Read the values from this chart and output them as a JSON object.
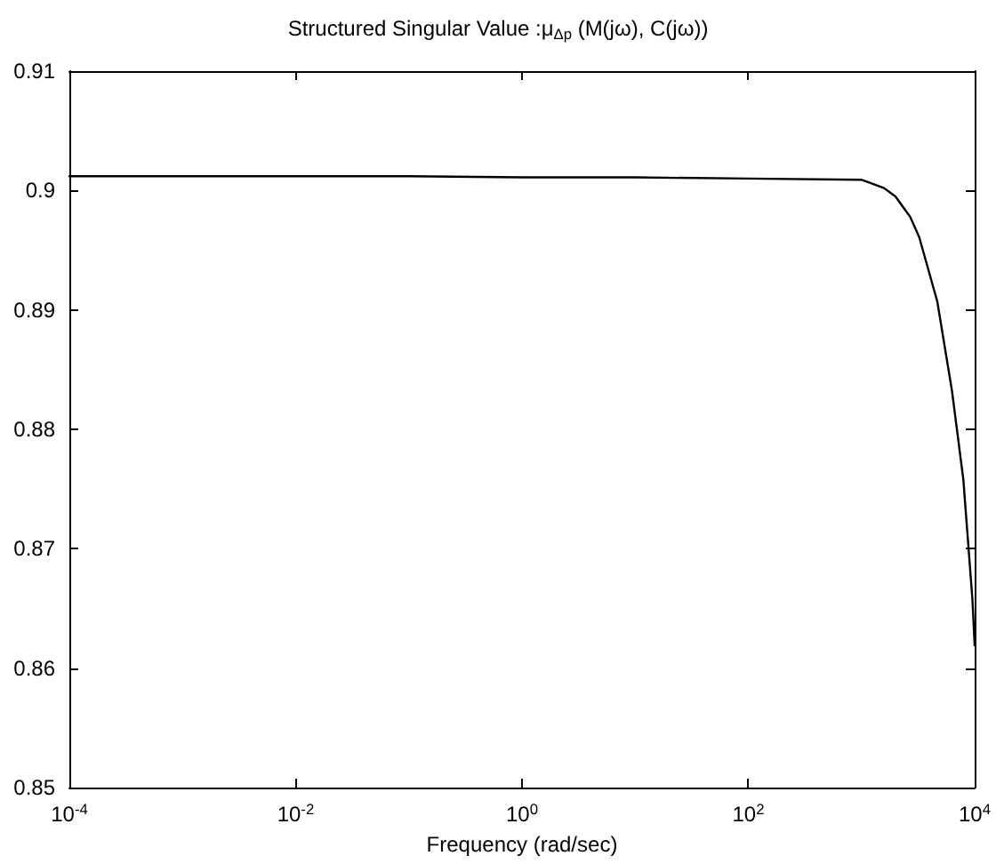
{
  "chart_data": {
    "type": "line",
    "title": "Structured Singular Value :μ$_{Δp}$ (M(jω), C(jω))",
    "xlabel": "Frequency (rad/sec)",
    "log": "x",
    "grid": false,
    "marker": "none",
    "line_style": "solid",
    "xlim": [
      0.0001,
      10000
    ],
    "xticks": [
      {
        "value": 0.0001,
        "label": "10$^{-4}$"
      },
      {
        "value": 0.01,
        "label": "10$^{-2}$"
      },
      {
        "value": 1,
        "label": "10$^{0}$"
      },
      {
        "value": 100,
        "label": "10$^{2}$"
      },
      {
        "value": 10000,
        "label": "10$^{4}$"
      }
    ],
    "ylim": [
      0.85,
      0.91
    ],
    "yticks": [
      0.85,
      0.86,
      0.87,
      0.88,
      0.89,
      0.9,
      0.91
    ],
    "series": [
      {
        "color": "#000000",
        "x": [
          0.0001,
          0.001,
          0.01,
          0.1,
          1,
          10,
          100,
          1000,
          1585,
          1995,
          2692,
          3236,
          4677,
          6310,
          7943,
          9550,
          10000
        ],
        "values": [
          0.9012,
          0.9012,
          0.9012,
          0.9012,
          0.9011,
          0.9011,
          0.901,
          0.9009,
          0.9002,
          0.8995,
          0.8978,
          0.8961,
          0.8907,
          0.8832,
          0.8758,
          0.8658,
          0.8619
        ]
      }
    ]
  }
}
